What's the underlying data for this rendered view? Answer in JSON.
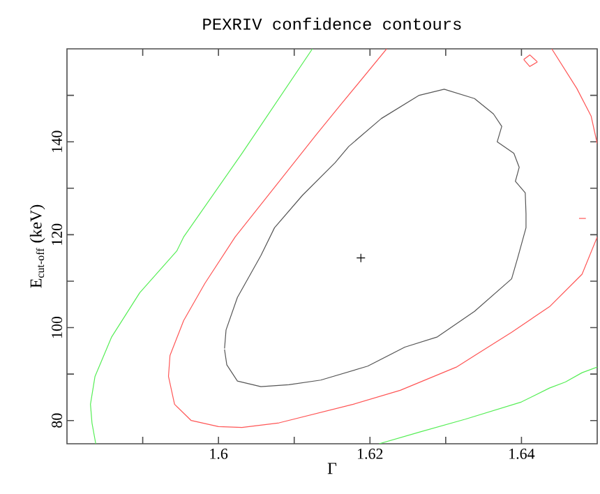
{
  "chart_data": {
    "type": "line",
    "title": "PEXRIV confidence contours",
    "xlabel": "Γ",
    "ylabel": "E$_{cut-off}$ (keV)",
    "xlim": [
      1.58,
      1.65
    ],
    "ylim": [
      75,
      160
    ],
    "xticks": [
      {
        "value": 1.59,
        "label": null
      },
      1.6,
      {
        "value": 1.61,
        "label": null
      },
      1.62,
      {
        "value": 1.63,
        "label": null
      },
      1.64
    ],
    "yticks": [
      80,
      {
        "value": 90,
        "label": null
      },
      100,
      {
        "value": 110,
        "label": null
      },
      120,
      {
        "value": 130,
        "label": null
      },
      140,
      {
        "value": 150,
        "label": null
      }
    ],
    "grid": false,
    "marker": "none",
    "line_style": "solid",
    "series": [
      {
        "color": "#55ee55",
        "x": [
          1.6124,
          1.6031,
          1.5954,
          1.5945,
          1.5896,
          1.5859,
          1.5837,
          1.5831,
          1.5833,
          1.5838
        ],
        "values": [
          160,
          137.5,
          119.5,
          116.5,
          107.5,
          98,
          89.5,
          83.5,
          79.5,
          75
        ]
      },
      {
        "color": "#55ee55",
        "x": [
          1.6212,
          1.6265,
          1.6326,
          1.64,
          1.6437,
          1.6458,
          1.648,
          1.65
        ],
        "values": [
          75,
          77.5,
          80.3,
          84,
          87,
          88.3,
          90.3,
          91.5
        ]
      },
      {
        "color": "#ff5555",
        "x": [
          1.6222,
          1.6159,
          1.6129,
          1.6022,
          1.5982,
          1.5954,
          1.5936,
          1.5934,
          1.5942,
          1.5964,
          1.6,
          1.6031,
          1.608,
          1.6178,
          1.624,
          1.6314,
          1.6387,
          1.6437,
          1.648,
          1.65
        ],
        "values": [
          160,
          147.5,
          141.5,
          119.5,
          109.5,
          101.5,
          94,
          89.5,
          83.5,
          80,
          78.7,
          78.5,
          79.5,
          83.5,
          86.5,
          91.5,
          99,
          104.5,
          111.5,
          119.5
        ]
      },
      {
        "color": "#ff5555",
        "x": [
          1.644,
          1.6473,
          1.6492,
          1.65
        ],
        "values": [
          160,
          151.5,
          145.5,
          139.6
        ]
      },
      {
        "color": "#ff5555",
        "x": [
          1.6403,
          1.6411,
          1.6421
        ],
        "values": [
          157.7,
          158.7,
          157.2
        ]
      },
      {
        "color": "#ff5555",
        "x": [
          1.6403,
          1.6411,
          1.6421
        ],
        "values": [
          157.7,
          156.2,
          157.2
        ]
      },
      {
        "color": "#ff5555",
        "x": [
          1.6476,
          1.6485
        ],
        "values": [
          123.5,
          123.5
        ]
      },
      {
        "color": "#555555",
        "x": [
          1.6008,
          1.601,
          1.6025,
          1.6056,
          1.6074,
          1.6111,
          1.6154,
          1.6172,
          1.6215,
          1.6265,
          1.6298,
          1.6338,
          1.6363,
          1.6374,
          1.6368,
          1.639,
          1.6397,
          1.6392,
          1.6405,
          1.6406,
          1.6406,
          1.6395,
          1.6387,
          1.6338,
          1.6289,
          1.6246,
          1.6197,
          1.6135,
          1.6093,
          1.6056,
          1.6025,
          1.6011,
          1.6008
        ],
        "values": [
          95.5,
          99.5,
          106.5,
          115.5,
          121.5,
          128.5,
          135.5,
          139,
          145,
          150,
          151.3,
          149.3,
          146,
          143.3,
          140,
          137.5,
          134.5,
          131.5,
          129,
          124.5,
          121.5,
          115,
          110.5,
          103.5,
          98,
          95.8,
          91.7,
          88.7,
          87.7,
          87.3,
          88.5,
          92,
          95.3
        ]
      },
      {
        "type": "scatter",
        "color": "#000000",
        "marker": "cross",
        "x": [
          1.6188
        ],
        "values": [
          115
        ]
      }
    ]
  }
}
